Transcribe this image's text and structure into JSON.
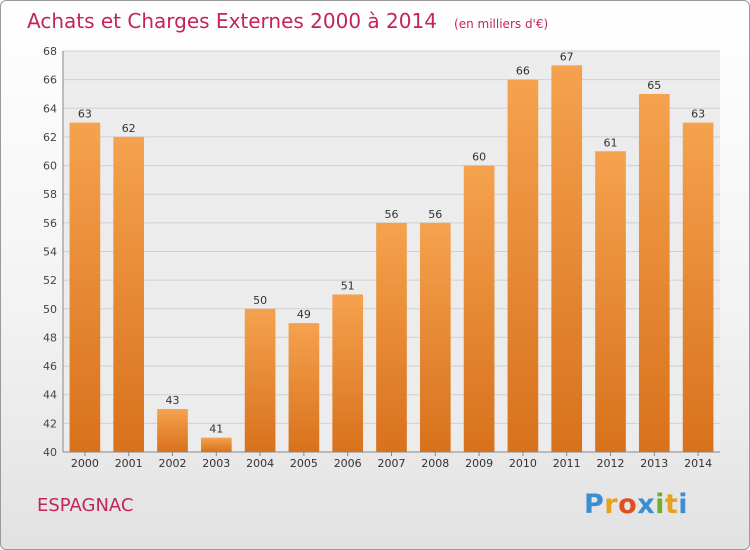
{
  "chart_data": {
    "type": "bar",
    "title": "Achats et Charges Externes 2000 à 2014",
    "subtitle": "(en milliers d'€)",
    "categories": [
      "2000",
      "2001",
      "2002",
      "2003",
      "2004",
      "2005",
      "2006",
      "2007",
      "2008",
      "2009",
      "2010",
      "2011",
      "2012",
      "2013",
      "2014"
    ],
    "values": [
      63,
      62,
      43,
      41,
      50,
      49,
      51,
      56,
      56,
      60,
      66,
      67,
      61,
      65,
      63
    ],
    "ylim": [
      40,
      68
    ],
    "yticks": [
      40,
      42,
      44,
      46,
      48,
      50,
      52,
      54,
      56,
      58,
      60,
      62,
      64,
      66,
      68
    ],
    "grid": true,
    "bar_color": "#e8832a"
  },
  "location": "ESPAGNAC",
  "logo": {
    "letters": [
      "P",
      "r",
      "o",
      "x",
      "i",
      "t",
      "i"
    ],
    "colors": [
      "#3b8ed0",
      "#e8a020",
      "#e05020",
      "#3b8ed0",
      "#6cb02c",
      "#e8a020",
      "#3b8ed0"
    ]
  }
}
